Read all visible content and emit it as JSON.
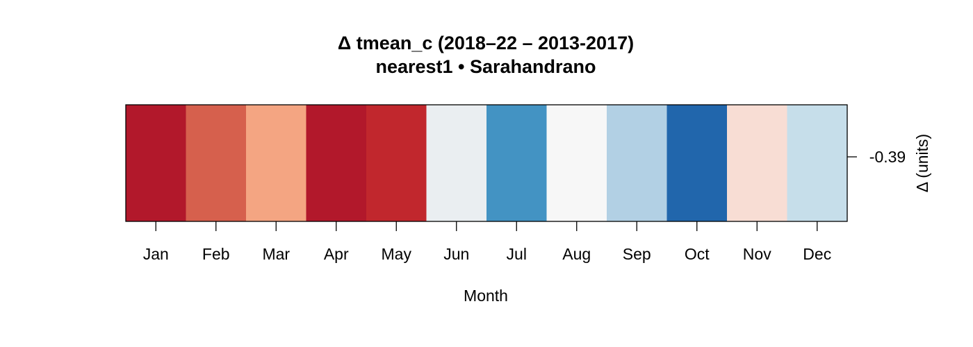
{
  "chart_data": {
    "type": "heatmap",
    "title": "Δ tmean_c (2018–22 – 2013-2017)",
    "subtitle": "nearest1 • Sarahandrano",
    "xlabel": "Month",
    "ylabel": "Δ (units)",
    "y_tick_labels": [
      "-0.39"
    ],
    "categories": [
      "Jan",
      "Feb",
      "Mar",
      "Apr",
      "May",
      "Jun",
      "Jul",
      "Aug",
      "Sep",
      "Oct",
      "Nov",
      "Dec"
    ],
    "colors": [
      "#b2182b",
      "#d6604d",
      "#f4a582",
      "#b2182b",
      "#c1272d",
      "#eaeef1",
      "#4393c3",
      "#f7f7f7",
      "#b2d0e4",
      "#2166ac",
      "#f8ddd4",
      "#c6deea"
    ],
    "colormap": "RdBu (diverging)",
    "grid": false,
    "legend": "none"
  }
}
